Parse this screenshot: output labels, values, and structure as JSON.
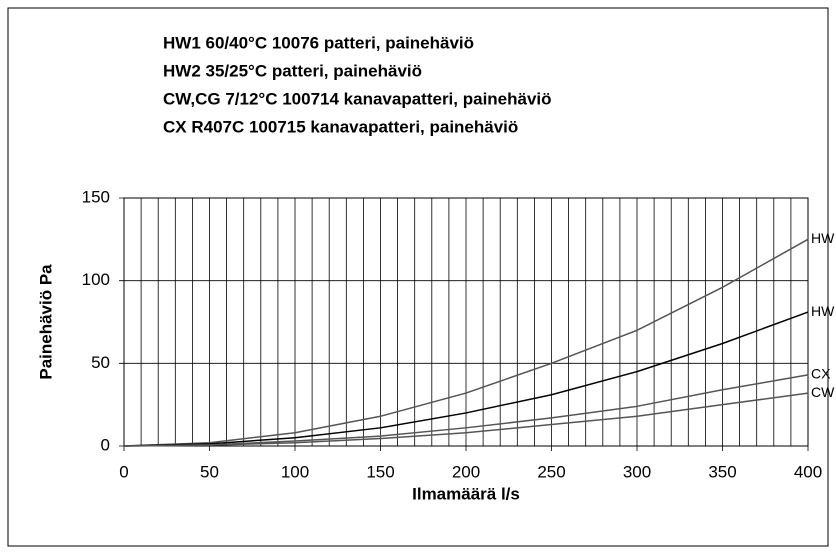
{
  "chart_data": {
    "type": "line",
    "title_lines": [
      "HW1 60/40°C 10076 patteri, painehäviö",
      "HW2 35/25°C patteri, painehäviö",
      "CW,CG 7/12°C 100714 kanavapatteri, painehäviö",
      "CX R407C 100715 kanavapatteri, painehäviö"
    ],
    "x_label": "Ilmamäärä l/s",
    "y_label": "Painehäviö Pa",
    "x": [
      0,
      50,
      100,
      150,
      200,
      250,
      300,
      350,
      400
    ],
    "series": [
      {
        "name": "HW",
        "color": "#555555",
        "values": [
          0,
          2,
          8,
          18,
          32,
          50,
          70,
          96,
          125
        ]
      },
      {
        "name": "HW",
        "color": "#000000",
        "values": [
          0,
          1.3,
          5,
          11,
          20,
          31,
          45,
          62,
          81
        ]
      },
      {
        "name": "CX",
        "color": "#555555",
        "values": [
          0,
          0.7,
          3,
          6,
          11,
          17,
          24,
          34,
          43
        ]
      },
      {
        "name": "CW",
        "color": "#555555",
        "values": [
          0,
          0.5,
          2,
          4.5,
          8,
          13,
          18,
          25,
          32
        ]
      }
    ],
    "xlim": [
      0,
      400
    ],
    "xticks": [
      0,
      50,
      100,
      150,
      200,
      250,
      300,
      350,
      400
    ],
    "x_minor_ticks": [
      10,
      20,
      30,
      40,
      60,
      70,
      80,
      90,
      110,
      120,
      130,
      140,
      160,
      170,
      180,
      190,
      210,
      220,
      230,
      240,
      260,
      270,
      280,
      290,
      310,
      320,
      330,
      340,
      360,
      370,
      380,
      390
    ],
    "ylim": [
      0,
      150
    ],
    "yticks": [
      0,
      50,
      100,
      150
    ],
    "grid": true
  }
}
